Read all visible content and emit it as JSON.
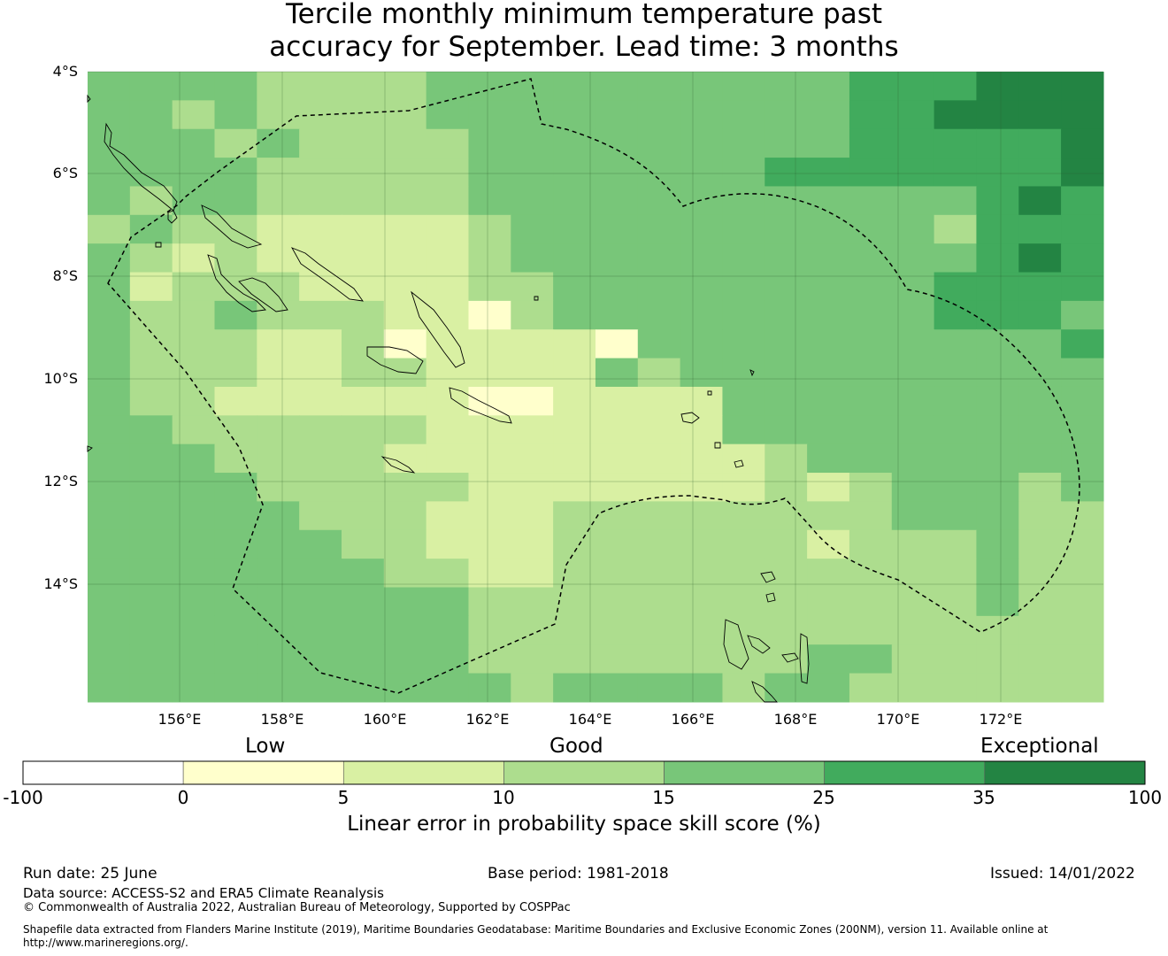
{
  "title": {
    "line1": "Tercile monthly minimum temperature past",
    "line2": "accuracy for September. Lead time: 3 months"
  },
  "map": {
    "lat_labels": [
      "4°S",
      "6°S",
      "8°S",
      "10°S",
      "12°S",
      "14°S"
    ],
    "lon_labels": [
      "156°E",
      "158°E",
      "160°E",
      "162°E",
      "164°E",
      "166°E",
      "168°E",
      "170°E",
      "172°E"
    ],
    "grid_cols": 24,
    "grid_rows": 22,
    "grid_values": [
      "44443333444444444455599999",
      "44443344333333333455555559"
    ],
    "cells": [
      "4443333344444444443333555",
      "4333333333444444455555555"
    ]
  },
  "legend": {
    "category_labels": [
      "Low",
      "Good",
      "Exceptional"
    ],
    "ticks": [
      "-100",
      "0",
      "5",
      "10",
      "15",
      "25",
      "35",
      "100"
    ],
    "colors": [
      "#ffffff",
      "#ffffcc",
      "#d9f0a3",
      "#addd8e",
      "#78c679",
      "#41ab5d",
      "#238443"
    ],
    "title": "Linear error in probability space skill score (%)"
  },
  "footer": {
    "run_date": "Run date: 25 June",
    "base_period": "Base period: 1981-2018",
    "issued": "Issued: 14/01/2022",
    "data_source": "Data source: ACCESS-S2 and ERA5 Climate Reanalysis",
    "copyright": "© Commonwealth of Australia 2022, Australian Bureau of Meteorology, Supported by COSPPac",
    "shapefile_line1": "Shapefile data extracted from Flanders Marine Institute (2019), Maritime Boundaries Geodatabase: Maritime Boundaries and Exclusive Economic Zones (200NM), version 11. Available online at",
    "shapefile_line2": "http://www.marineregions.org/."
  }
}
